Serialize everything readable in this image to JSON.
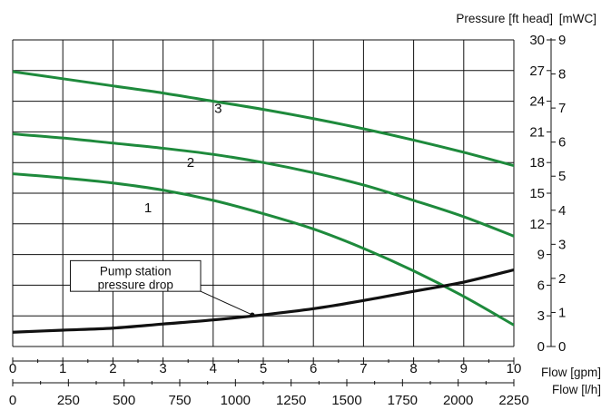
{
  "chart_data": {
    "type": "line",
    "title": "",
    "x_axes": [
      {
        "label": "Flow [gpm]",
        "ticks": [
          0,
          1,
          2,
          3,
          4,
          5,
          6,
          7,
          8,
          9,
          10
        ],
        "lim": [
          0,
          10
        ]
      },
      {
        "label": "Flow [l/h]",
        "ticks": [
          0,
          250,
          500,
          750,
          1000,
          1250,
          1500,
          1750,
          2000,
          2250
        ],
        "lim": [
          0,
          2250
        ]
      }
    ],
    "y_axes": [
      {
        "label": "Pressure [ft head]",
        "ticks": [
          0,
          3,
          6,
          9,
          12,
          15,
          18,
          21,
          24,
          27,
          30
        ],
        "lim": [
          0,
          30
        ]
      },
      {
        "label": "[mWC]",
        "ticks": [
          0,
          1,
          2,
          3,
          4,
          5,
          6,
          7,
          8,
          9
        ],
        "lim": [
          0,
          9
        ]
      }
    ],
    "grid": true,
    "series": [
      {
        "name": "3",
        "color": "#1e8a3c",
        "x": [
          0,
          1,
          2,
          3,
          4,
          5,
          6,
          7,
          8,
          9,
          10
        ],
        "y": [
          26.9,
          26.2,
          25.5,
          24.8,
          24.0,
          23.2,
          22.3,
          21.3,
          20.2,
          19.0,
          17.7
        ]
      },
      {
        "name": "2",
        "color": "#1e8a3c",
        "x": [
          0,
          1,
          2,
          3,
          4,
          5,
          6,
          7,
          8,
          9,
          10
        ],
        "y": [
          20.8,
          20.4,
          19.9,
          19.4,
          18.8,
          18.0,
          17.0,
          15.8,
          14.3,
          12.7,
          10.8
        ]
      },
      {
        "name": "1",
        "color": "#1e8a3c",
        "x": [
          0,
          1,
          2,
          3,
          4,
          5,
          6,
          7,
          8,
          9,
          10
        ],
        "y": [
          16.9,
          16.5,
          16.0,
          15.3,
          14.3,
          13.0,
          11.5,
          9.6,
          7.4,
          4.9,
          2.1
        ]
      },
      {
        "name": "Pump station pressure drop",
        "color": "#111111",
        "x": [
          0,
          1,
          2,
          3,
          4,
          5,
          6,
          7,
          8,
          9,
          10
        ],
        "y": [
          1.4,
          1.6,
          1.8,
          2.2,
          2.6,
          3.1,
          3.7,
          4.5,
          5.4,
          6.3,
          7.5
        ]
      }
    ],
    "annotations": {
      "curve_labels": [
        {
          "text": "3",
          "x": 4.1,
          "y": 23.3
        },
        {
          "text": "2",
          "x": 3.55,
          "y": 18.0
        },
        {
          "text": "1",
          "x": 2.7,
          "y": 13.6
        }
      ],
      "callout": {
        "lines": [
          "Pump station",
          "pressure drop"
        ],
        "box_x": [
          1.15,
          3.75
        ],
        "box_y": [
          5.4,
          8.4
        ],
        "arrow_from": [
          3.75,
          5.4
        ],
        "arrow_to": [
          4.78,
          3.1
        ]
      }
    }
  }
}
